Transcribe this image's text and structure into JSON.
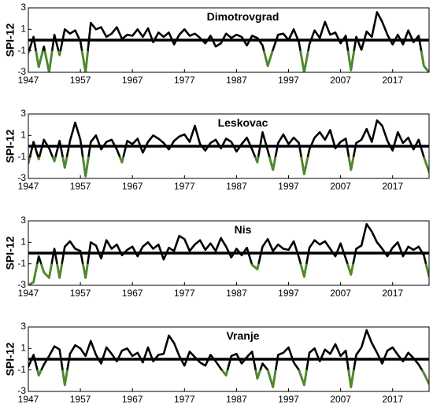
{
  "chart_data": [
    {
      "type": "line",
      "title": "Dimotrovgrad",
      "ylabel": "SPI-12",
      "xlabel": "",
      "xlim": [
        1947,
        2024
      ],
      "ylim": [
        -3,
        3
      ],
      "x_ticks": [
        "1947",
        "1957",
        "1967",
        "1977",
        "1987",
        "1997",
        "2007",
        "2017"
      ],
      "y_ticks": [
        "-3",
        "-1",
        "1",
        "3"
      ],
      "reference_line": 0,
      "grid": false,
      "colors": {
        "series": "#000000",
        "drought": "#4e8a2b",
        "zero_line": "#000000"
      },
      "x": [
        1947,
        1948,
        1949,
        1950,
        1951,
        1952,
        1953,
        1954,
        1955,
        1956,
        1957,
        1958,
        1959,
        1960,
        1961,
        1962,
        1963,
        1964,
        1965,
        1966,
        1967,
        1968,
        1969,
        1970,
        1971,
        1972,
        1973,
        1974,
        1975,
        1976,
        1977,
        1978,
        1979,
        1980,
        1981,
        1982,
        1983,
        1984,
        1985,
        1986,
        1987,
        1988,
        1989,
        1990,
        1991,
        1992,
        1993,
        1994,
        1995,
        1996,
        1997,
        1998,
        1999,
        2000,
        2001,
        2002,
        2003,
        2004,
        2005,
        2006,
        2007,
        2008,
        2009,
        2010,
        2011,
        2012,
        2013,
        2014,
        2015,
        2016,
        2017,
        2018,
        2019,
        2020,
        2021,
        2022,
        2023,
        2024
      ],
      "series": [
        {
          "values": [
            -1.2,
            0.3,
            -2.5,
            -0.6,
            -3.0,
            0.5,
            -1.4,
            1.0,
            0.6,
            0.9,
            -0.1,
            -3.0,
            1.6,
            1.0,
            1.2,
            0.3,
            0.6,
            1.2,
            0.1,
            0.5,
            0.4,
            1.0,
            0.3,
            1.1,
            -0.2,
            0.7,
            0.3,
            0.7,
            -0.4,
            0.5,
            1.0,
            0.4,
            0.6,
            0.2,
            -0.3,
            0.4,
            -0.6,
            -0.3,
            0.6,
            0.2,
            0.5,
            0.3,
            -0.5,
            0.4,
            0.2,
            -0.5,
            -2.4,
            -0.9,
            0.5,
            0.6,
            0.0,
            1.0,
            -0.2,
            -3.0,
            -0.4,
            0.9,
            0.2,
            1.7,
            0.5,
            0.7,
            -0.3,
            0.4,
            -2.8,
            0.3,
            -0.9,
            0.8,
            0.3,
            2.6,
            1.7,
            0.5,
            -0.4,
            0.5,
            -0.4,
            0.9,
            -0.2,
            0.4,
            -2.4,
            -3.0
          ]
        }
      ]
    },
    {
      "type": "line",
      "title": "Leskovac",
      "ylabel": "SPI-12",
      "xlabel": "",
      "xlim": [
        1947,
        2024
      ],
      "ylim": [
        -3,
        3
      ],
      "x_ticks": [
        "1947",
        "1957",
        "1967",
        "1977",
        "1987",
        "1997",
        "2007",
        "2017"
      ],
      "y_ticks": [
        "-3",
        "-1",
        "1",
        "3"
      ],
      "reference_line": 0,
      "grid": false,
      "colors": {
        "series": "#000000",
        "drought": "#4e8a2b",
        "zero_line": "#000000"
      },
      "x": [
        1947,
        1948,
        1949,
        1950,
        1951,
        1952,
        1953,
        1954,
        1955,
        1956,
        1957,
        1958,
        1959,
        1960,
        1961,
        1962,
        1963,
        1964,
        1965,
        1966,
        1967,
        1968,
        1969,
        1970,
        1971,
        1972,
        1973,
        1974,
        1975,
        1976,
        1977,
        1978,
        1979,
        1980,
        1981,
        1982,
        1983,
        1984,
        1985,
        1986,
        1987,
        1988,
        1989,
        1990,
        1991,
        1992,
        1993,
        1994,
        1995,
        1996,
        1997,
        1998,
        1999,
        2000,
        2001,
        2002,
        2003,
        2004,
        2005,
        2006,
        2007,
        2008,
        2009,
        2010,
        2011,
        2012,
        2013,
        2014,
        2015,
        2016,
        2017,
        2018,
        2019,
        2020,
        2021,
        2022,
        2023,
        2024
      ],
      "series": [
        {
          "values": [
            -1.6,
            0.4,
            -1.2,
            0.6,
            -0.2,
            -1.4,
            0.5,
            -2.0,
            0.5,
            2.2,
            0.6,
            -2.8,
            0.4,
            1.0,
            -0.3,
            0.4,
            0.6,
            -0.3,
            -1.5,
            0.5,
            0.2,
            0.7,
            -0.6,
            0.4,
            1.0,
            0.7,
            0.3,
            -0.3,
            0.5,
            0.9,
            1.1,
            0.4,
            1.9,
            0.2,
            -0.4,
            0.3,
            0.6,
            -0.2,
            0.7,
            0.4,
            -0.5,
            0.2,
            0.8,
            -0.3,
            -1.5,
            1.3,
            -0.4,
            -2.2,
            0.3,
            1.1,
            0.2,
            0.8,
            0.3,
            -2.6,
            -0.3,
            0.8,
            1.3,
            0.6,
            1.5,
            -0.2,
            0.4,
            0.7,
            -2.2,
            0.3,
            0.6,
            1.6,
            0.4,
            2.4,
            1.9,
            0.5,
            -0.4,
            1.3,
            0.3,
            0.8,
            -0.3,
            0.6,
            -1.0,
            -2.4
          ]
        }
      ]
    },
    {
      "type": "line",
      "title": "Nis",
      "ylabel": "SPI-12",
      "xlabel": "",
      "xlim": [
        1947,
        2024
      ],
      "ylim": [
        -3,
        3
      ],
      "x_ticks": [
        "1947",
        "1957",
        "1967",
        "1977",
        "1987",
        "1997",
        "2007",
        "2017"
      ],
      "y_ticks": [
        "-3",
        "-1",
        "1",
        "3"
      ],
      "reference_line": 0,
      "grid": false,
      "colors": {
        "series": "#000000",
        "drought": "#4e8a2b",
        "zero_line": "#000000"
      },
      "x": [
        1947,
        1948,
        1949,
        1950,
        1951,
        1952,
        1953,
        1954,
        1955,
        1956,
        1957,
        1958,
        1959,
        1960,
        1961,
        1962,
        1963,
        1964,
        1965,
        1966,
        1967,
        1968,
        1969,
        1970,
        1971,
        1972,
        1973,
        1974,
        1975,
        1976,
        1977,
        1978,
        1979,
        1980,
        1981,
        1982,
        1983,
        1984,
        1985,
        1986,
        1987,
        1988,
        1989,
        1990,
        1991,
        1992,
        1993,
        1994,
        1995,
        1996,
        1997,
        1998,
        1999,
        2000,
        2001,
        2002,
        2003,
        2004,
        2005,
        2006,
        2007,
        2008,
        2009,
        2010,
        2011,
        2012,
        2013,
        2014,
        2015,
        2016,
        2017,
        2018,
        2019,
        2020,
        2021,
        2022,
        2023,
        2024
      ],
      "series": [
        {
          "values": [
            -3.0,
            -2.7,
            -0.3,
            -1.8,
            -2.3,
            0.4,
            -2.3,
            0.6,
            1.1,
            0.4,
            0.2,
            -2.3,
            1.0,
            0.7,
            -0.5,
            1.2,
            0.4,
            0.8,
            -0.2,
            0.3,
            0.6,
            -0.3,
            0.6,
            1.0,
            0.4,
            0.8,
            -0.6,
            0.5,
            0.2,
            1.6,
            1.3,
            0.2,
            0.8,
            1.2,
            0.3,
            0.9,
            0.2,
            1.4,
            0.6,
            -0.4,
            0.4,
            -0.2,
            0.5,
            -1.1,
            -1.5,
            0.6,
            1.3,
            0.2,
            0.8,
            0.4,
            0.3,
            1.1,
            -0.4,
            -2.2,
            0.5,
            1.2,
            0.8,
            1.1,
            0.4,
            -0.3,
            0.9,
            -0.5,
            -2.0,
            0.4,
            0.7,
            2.7,
            2.0,
            1.0,
            0.4,
            -0.3,
            0.5,
            1.0,
            -0.3,
            0.6,
            0.3,
            0.6,
            -0.2,
            -2.2
          ]
        }
      ]
    },
    {
      "type": "line",
      "title": "Vranje",
      "ylabel": "SPI-12",
      "xlabel": "",
      "xlim": [
        1947,
        2024
      ],
      "ylim": [
        -3,
        3
      ],
      "x_ticks": [
        "1947",
        "1957",
        "1967",
        "1977",
        "1987",
        "1997",
        "2007",
        "2017"
      ],
      "y_ticks": [
        "-3",
        "-1",
        "1",
        "3"
      ],
      "reference_line": 0,
      "grid": false,
      "colors": {
        "series": "#000000",
        "drought": "#4e8a2b",
        "zero_line": "#000000"
      },
      "x": [
        1947,
        1948,
        1949,
        1950,
        1951,
        1952,
        1953,
        1954,
        1955,
        1956,
        1957,
        1958,
        1959,
        1960,
        1961,
        1962,
        1963,
        1964,
        1965,
        1966,
        1967,
        1968,
        1969,
        1970,
        1971,
        1972,
        1973,
        1974,
        1975,
        1976,
        1977,
        1978,
        1979,
        1980,
        1981,
        1982,
        1983,
        1984,
        1985,
        1986,
        1987,
        1988,
        1989,
        1990,
        1991,
        1992,
        1993,
        1994,
        1995,
        1996,
        1997,
        1998,
        1999,
        2000,
        2001,
        2002,
        2003,
        2004,
        2005,
        2006,
        2007,
        2008,
        2009,
        2010,
        2011,
        2012,
        2013,
        2014,
        2015,
        2016,
        2017,
        2018,
        2019,
        2020,
        2021,
        2022,
        2023,
        2024
      ],
      "series": [
        {
          "values": [
            -0.7,
            0.4,
            -1.5,
            -0.5,
            0.3,
            1.2,
            0.9,
            -2.4,
            0.5,
            1.3,
            1.0,
            0.3,
            1.7,
            0.4,
            -0.4,
            1.1,
            0.5,
            -0.2,
            0.8,
            1.0,
            0.3,
            0.6,
            -0.3,
            1.1,
            -0.2,
            0.4,
            0.5,
            2.2,
            1.5,
            0.3,
            -0.6,
            0.7,
            0.2,
            -0.3,
            -0.6,
            0.4,
            -0.2,
            -0.9,
            -1.5,
            0.3,
            0.5,
            -0.4,
            0.2,
            0.7,
            -1.8,
            -0.4,
            -1.0,
            -2.6,
            0.4,
            0.6,
            1.1,
            -0.3,
            -1.0,
            -2.4,
            0.6,
            1.0,
            -0.2,
            0.9,
            0.5,
            1.4,
            0.3,
            0.8,
            -2.6,
            0.4,
            1.1,
            2.7,
            1.5,
            0.6,
            -0.4,
            0.8,
            1.1,
            0.4,
            -0.2,
            0.6,
            0.1,
            -0.5,
            -1.3,
            -2.3
          ]
        }
      ]
    }
  ]
}
